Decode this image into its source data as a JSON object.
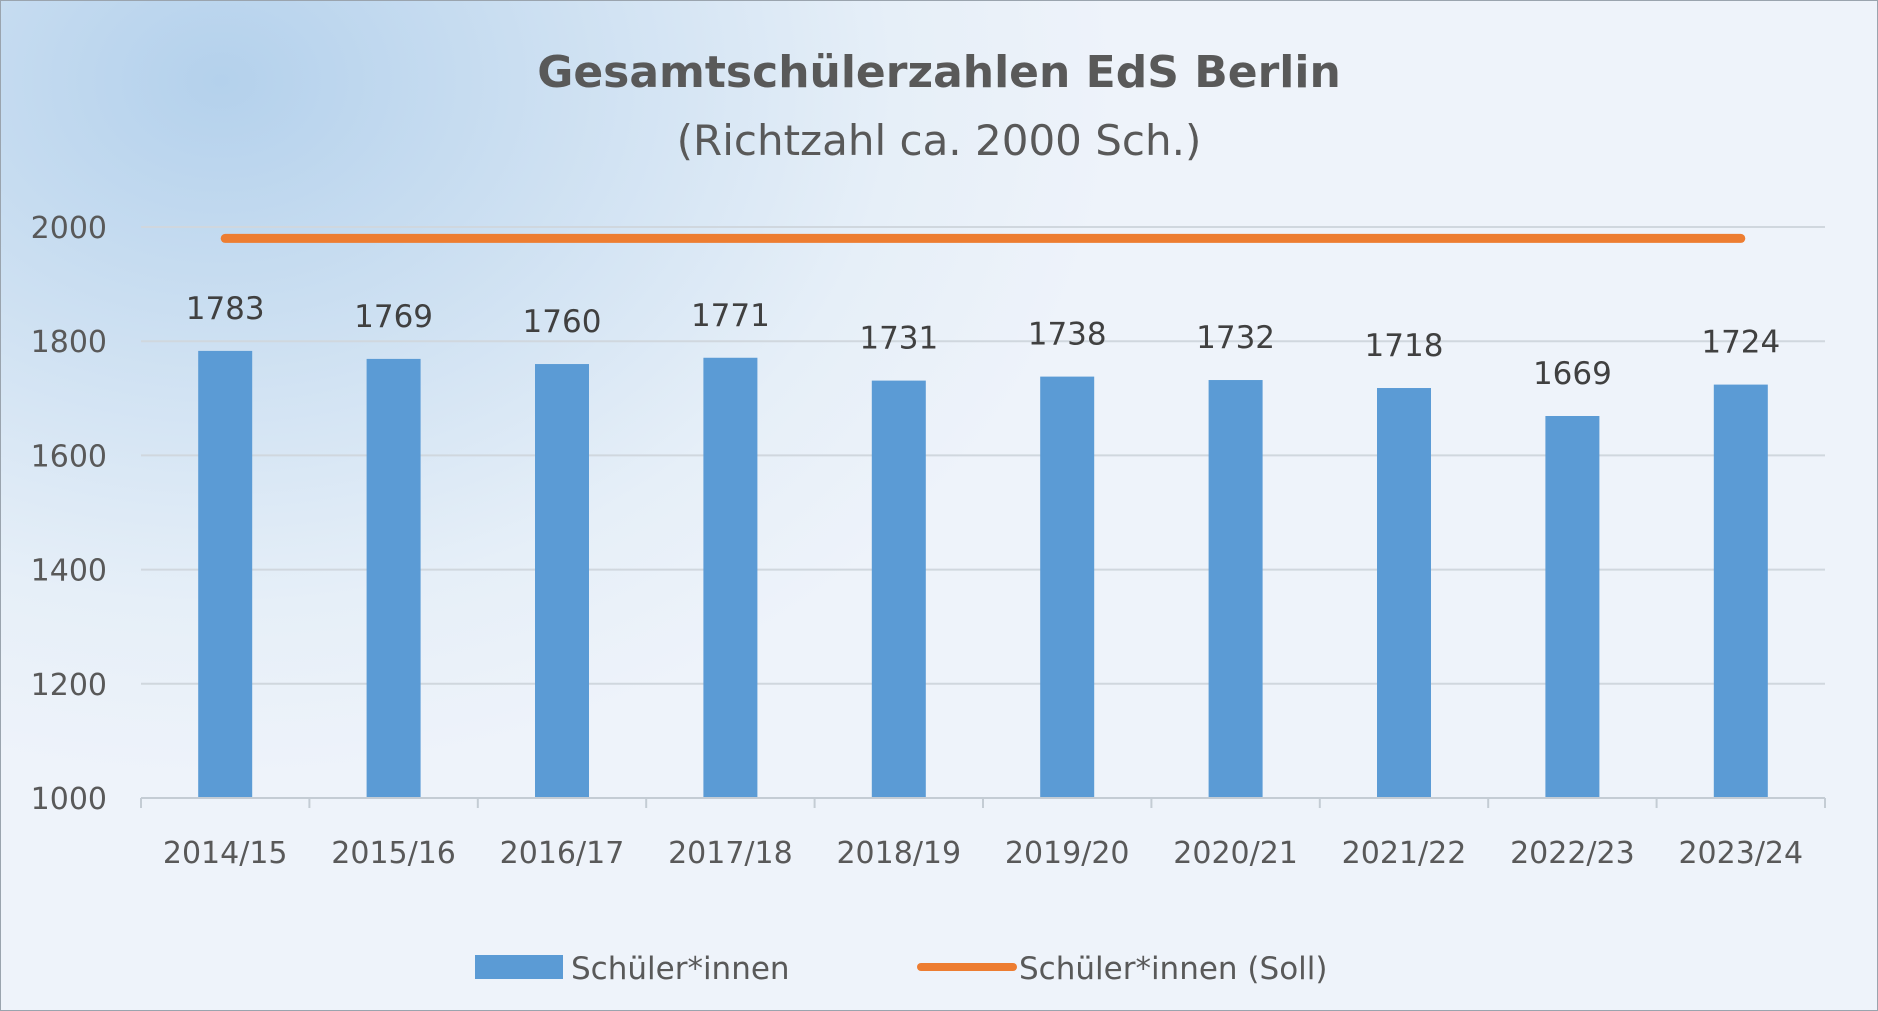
{
  "chart_data": {
    "type": "bar",
    "title": "Gesamtschülerzahlen EdS Berlin",
    "subtitle": "(Richtzahl ca. 2000 Sch.)",
    "categories": [
      "2014/15",
      "2015/16",
      "2016/17",
      "2017/18",
      "2018/19",
      "2019/20",
      "2020/21",
      "2021/22",
      "2022/23",
      "2023/24"
    ],
    "series": [
      {
        "name": "Schüler*innen",
        "type": "bar",
        "color": "#5b9bd5",
        "values": [
          1783,
          1769,
          1760,
          1771,
          1731,
          1738,
          1732,
          1718,
          1669,
          1724
        ],
        "data_labels": [
          "1783",
          "1769",
          "1760",
          "1771",
          "1731",
          "1738",
          "1732",
          "1718",
          "1669",
          "1724"
        ]
      },
      {
        "name": "Schüler*innen (Soll)",
        "type": "line",
        "color": "#ed7d31",
        "values": [
          1980,
          1980,
          1980,
          1980,
          1980,
          1980,
          1980,
          1980,
          1980,
          1980
        ]
      }
    ],
    "ylim": [
      1000,
      2000
    ],
    "yticks": [
      1000,
      1200,
      1400,
      1600,
      1800,
      2000
    ],
    "ytick_labels": [
      "1000",
      "1200",
      "1400",
      "1600",
      "1800",
      "2000"
    ],
    "grid": true,
    "legend_position": "bottom"
  }
}
